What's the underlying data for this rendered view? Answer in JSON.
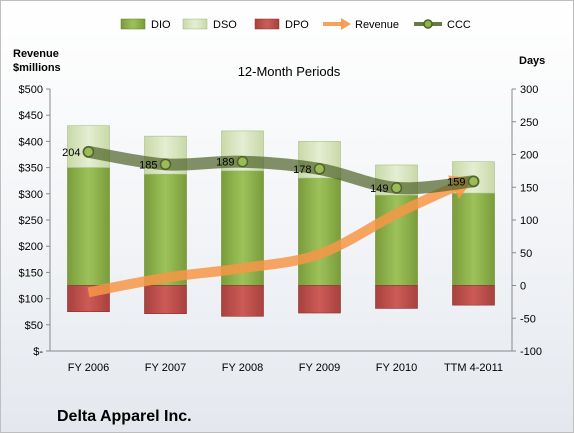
{
  "chart_data": {
    "type": "bar",
    "title": "12-Month Periods",
    "company": "Delta Apparel Inc.",
    "y_left_label_line1": "Revenue",
    "y_left_label_line2": "$millions",
    "y_right_label": "Days",
    "y_left_ticks": [
      "$-",
      "$50",
      "$100",
      "$150",
      "$200",
      "$250",
      "$300",
      "$350",
      "$400",
      "$450",
      "$500"
    ],
    "y_right_ticks": [
      "-100",
      "-50",
      "0",
      "50",
      "100",
      "150",
      "200",
      "250",
      "300"
    ],
    "ylim_left": [
      0,
      500
    ],
    "ylim_right": [
      -100,
      300
    ],
    "grid": false,
    "legend_position": "top",
    "categories": [
      "FY 2006",
      "FY 2007",
      "FY 2008",
      "FY 2009",
      "FY 2010",
      "TTM 4-2011"
    ],
    "series": [
      {
        "name": "DIO",
        "axis": "right",
        "kind": "stacked-bar",
        "color": "#8db24a",
        "values": [
          180,
          170,
          175,
          164,
          138,
          141
        ]
      },
      {
        "name": "DSO",
        "axis": "right",
        "kind": "stacked-bar",
        "color": "#d7e4bd",
        "values": [
          64,
          58,
          61,
          56,
          46,
          48
        ]
      },
      {
        "name": "DPO",
        "axis": "right",
        "kind": "negative-bar",
        "color": "#c0504d",
        "values": [
          -40,
          -43,
          -47,
          -42,
          -35,
          -30
        ]
      },
      {
        "name": "Revenue",
        "axis": "left",
        "kind": "arrow-line",
        "color": "#f79646",
        "values": [
          112,
          140,
          158,
          185,
          262,
          330
        ]
      },
      {
        "name": "CCC",
        "axis": "right",
        "kind": "line-markers",
        "color": "#4f6228",
        "values": [
          204,
          185,
          189,
          178,
          149,
          159
        ]
      }
    ],
    "data_labels": [
      "204",
      "185",
      "189",
      "178",
      "149",
      "159"
    ]
  }
}
